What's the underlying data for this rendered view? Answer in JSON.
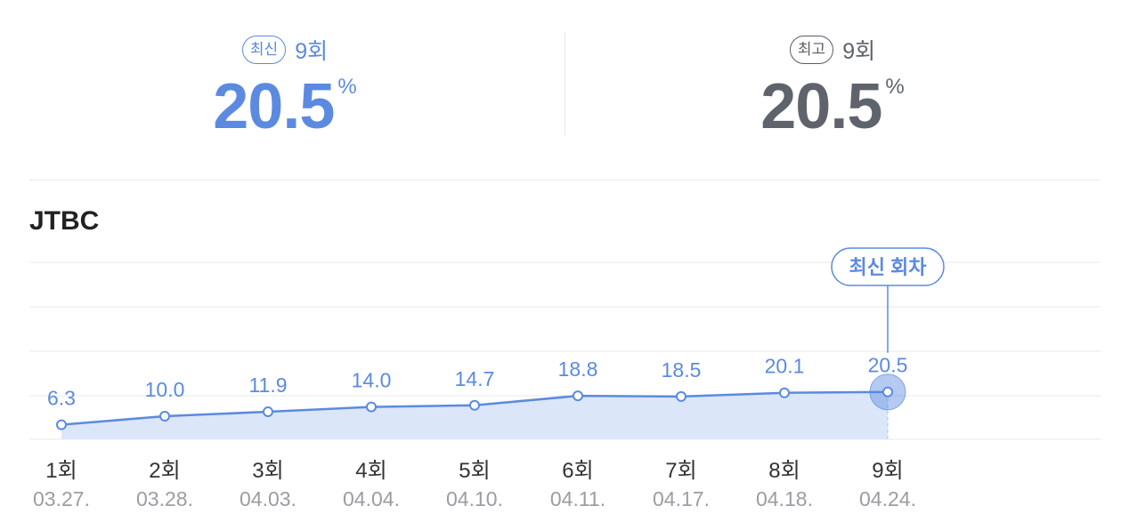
{
  "stats": {
    "latest": {
      "badge": "최신",
      "episode": "9회",
      "value": "20.5",
      "unit": "%"
    },
    "best": {
      "badge": "최고",
      "episode": "9회",
      "value": "20.5",
      "unit": "%"
    }
  },
  "channel": "JTBC",
  "colors": {
    "accent": "#5b8ae0",
    "muted": "#5e636c",
    "area_fill": "#dce6f9",
    "grid": "#e8e9ec",
    "date_text": "#9a9da3",
    "episode_text": "#333333"
  },
  "chart_data": {
    "type": "area",
    "title": "",
    "xlabel": "",
    "ylabel": "",
    "categories": [
      "1회",
      "2회",
      "3회",
      "4회",
      "5회",
      "6회",
      "7회",
      "8회",
      "9회"
    ],
    "dates": [
      "03.27.",
      "03.28.",
      "04.03.",
      "04.04.",
      "04.10.",
      "04.11.",
      "04.17.",
      "04.18.",
      "04.24."
    ],
    "series": [
      {
        "values": [
          6.3,
          10.0,
          11.9,
          14.0,
          14.7,
          18.8,
          18.5,
          20.1,
          20.5
        ]
      }
    ],
    "value_labels": [
      "6.3",
      "10.0",
      "11.9",
      "14.0",
      "14.7",
      "18.8",
      "18.5",
      "20.1",
      "20.5"
    ],
    "highlight_index": 8,
    "highlight_label": "최신 회차",
    "grid": true,
    "ylim": [
      0,
      100
    ]
  }
}
